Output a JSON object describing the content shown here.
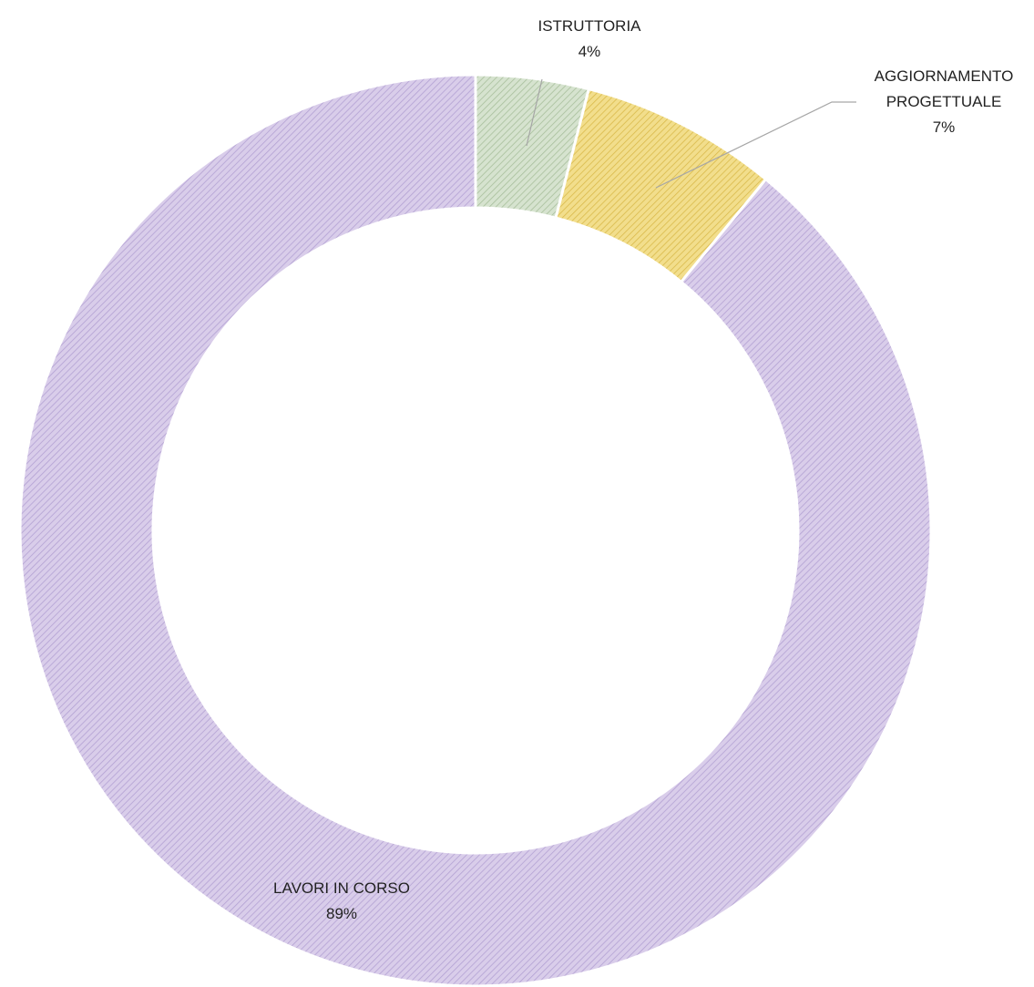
{
  "chart_data": {
    "type": "pie",
    "donut": true,
    "categories": [
      "ISTRUTTORIA",
      "AGGIORNAMENTO PROGETTUALE",
      "LAVORI IN CORSO"
    ],
    "values": [
      4,
      7,
      89
    ],
    "labels": [
      {
        "lines": [
          "ISTRUTTORIA"
        ],
        "pct": "4%"
      },
      {
        "lines": [
          "AGGIORNAMENTO",
          "PROGETTUALE"
        ],
        "pct": "7%"
      },
      {
        "lines": [
          "LAVORI IN CORSO"
        ],
        "pct": "89%"
      }
    ],
    "colors": [
      "#d6e3cf",
      "#f2de8c",
      "#d9cdea"
    ],
    "hatch_colors": [
      "#a8bf9c",
      "#d9b94a",
      "#b3a1d3"
    ],
    "title": "",
    "legend": "none"
  }
}
